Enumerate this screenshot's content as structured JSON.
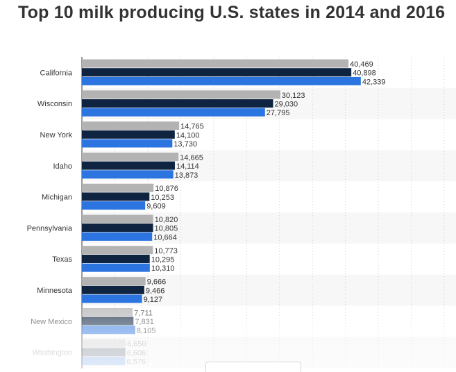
{
  "title": "Top 10 milk producing U.S. states in 2014 and 2016",
  "chart_data": {
    "type": "bar",
    "orientation": "horizontal",
    "title": "Top 10 milk producing U.S. states in 2014 and 2016",
    "categories": [
      "California",
      "Wisconsin",
      "New York",
      "Idaho",
      "Michigan",
      "Pennsylvania",
      "Texas",
      "Minnesota",
      "New Mexico",
      "Washington"
    ],
    "series": [
      {
        "values": [
          40469,
          30123,
          14765,
          14665,
          10876,
          10820,
          10773,
          9666,
          7711,
          6650
        ],
        "color": "#b3b3b3"
      },
      {
        "values": [
          40898,
          29030,
          14100,
          14114,
          10253,
          10805,
          10295,
          9466,
          7831,
          6606
        ],
        "color": "#0e2440"
      },
      {
        "values": [
          42339,
          27795,
          13730,
          13873,
          9609,
          10664,
          10310,
          9127,
          8105,
          6576
        ],
        "color": "#2c75e0"
      }
    ],
    "value_labels": [
      [
        "40,469",
        "40,898",
        "42,339"
      ],
      [
        "30,123",
        "29,030",
        "27,795"
      ],
      [
        "14,765",
        "14,100",
        "13,730"
      ],
      [
        "14,665",
        "14,114",
        "13,873"
      ],
      [
        "10,876",
        "10,253",
        "9,609"
      ],
      [
        "10,820",
        "10,805",
        "10,664"
      ],
      [
        "10,773",
        "10,295",
        "10,310"
      ],
      [
        "9,666",
        "9,466",
        "9,127"
      ],
      [
        "7,711",
        "7,831",
        "8,105"
      ],
      [
        "6,650",
        "6,606",
        "6,576"
      ]
    ],
    "xlim": [
      0,
      55000
    ],
    "grid": true,
    "legend": "none"
  }
}
